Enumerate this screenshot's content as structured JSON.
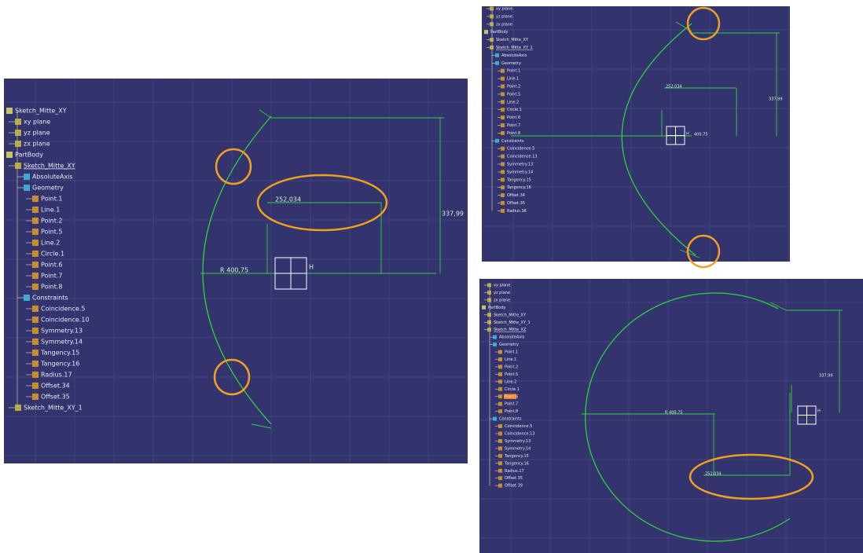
{
  "panels": [
    {
      "tree": [
        "Sketch_Mitte_XY",
        "xy plane",
        "yz plane",
        "zx plane",
        "PartBody",
        "Sketch_Mitte_XY",
        "AbsoluteAxis",
        "Geometry",
        "Point.1",
        "Line.1",
        "Point.2",
        "Point.5",
        "Line.2",
        "Circle.1",
        "Point.6",
        "Point.7",
        "Point.8",
        "Constraints",
        "Coincidence.5",
        "Coincidence.10",
        "Symmetry.13",
        "Symmetry.14",
        "Tangency.15",
        "Tangency.16",
        "Radius.17",
        "Offset.34",
        "Offset.35",
        "Sketch_Mitte_XY_1"
      ],
      "underlined": 5,
      "dimensions": [
        "252,034",
        "337,99",
        "R 400,75"
      ],
      "axis_label": "H"
    },
    {
      "tree": [
        "xy plane",
        "yz plane",
        "zx plane",
        "PartBody",
        "Sketch_Mitte_XY",
        "Sketch_Mitte_XY_1",
        "AbsoluteAxis",
        "Geometry",
        "Point.1",
        "Line.1",
        "Point.2",
        "Point.5",
        "Line.2",
        "Circle.1",
        "Point.6",
        "Point.7",
        "Point.8",
        "Constraints",
        "Coincidence.5",
        "Coincidence.13",
        "Symmetry.13",
        "Symmetry.14",
        "Tangency.15",
        "Tangency.16",
        "Offset.34",
        "Offset.35",
        "Radius.38"
      ],
      "underlined": 5,
      "dimensions": [
        "252,034",
        "337,99",
        "400,75"
      ],
      "axis_label": "H"
    },
    {
      "tree": [
        "xy plane",
        "yz plane",
        "zx plane",
        "PartBody",
        "Sketch_Mitte_XY",
        "Sketch_Mitte_XY_1",
        "Sketch_Mitte_XZ",
        "AbsoluteAxis",
        "Geometry",
        "Point.1",
        "Line.1",
        "Point.2",
        "Point.5",
        "Line.2",
        "Circle.1",
        "Point.6",
        "Point.7",
        "Point.8",
        "Constraints",
        "Coincidence.5",
        "Coincidence.13",
        "Symmetry.13",
        "Symmetry.14",
        "Tangency.15",
        "Tangency.16",
        "Radius.17",
        "Offset.35",
        "Offset.39"
      ],
      "underlined": 6,
      "selected": 15,
      "dimensions": [
        "337,99",
        "R 400,75",
        "252,034"
      ],
      "axis_label": "H"
    }
  ]
}
